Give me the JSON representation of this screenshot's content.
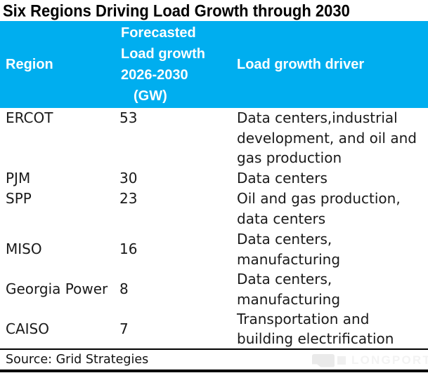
{
  "title": "Six Regions Driving Load Growth through 2030",
  "colors": {
    "header_bg": "#00AEEF",
    "header_text": "#FFFFFF",
    "body_text": "#1A1A1A",
    "rule_lines": "#000000",
    "watermark": "#F0F0F0"
  },
  "watermark": {
    "label": "LONGPORT",
    "logo": "longport-flag-logo"
  },
  "chart_data": {
    "type": "table",
    "title": "Six Regions Driving Load Growth through 2030",
    "columns": [
      "Region",
      "Forecasted Load growth 2026-2030 (GW)",
      "Load growth driver"
    ],
    "header": {
      "region": "Region",
      "forecast_lines": [
        "Forecasted",
        "Load growth",
        "2026-2030",
        "(GW)"
      ],
      "driver": "Load growth driver"
    },
    "rows": [
      {
        "region": "ERCOT",
        "load_growth_gw": "53",
        "driver": "Data centers,industrial development, and oil and gas production",
        "driver_lines": [
          "Data centers,industrial",
          "development, and oil and",
          "gas production"
        ]
      },
      {
        "region": "PJM",
        "load_growth_gw": "30",
        "driver": "Data centers",
        "driver_lines": [
          "Data centers"
        ]
      },
      {
        "region": "SPP",
        "load_growth_gw": "23",
        "driver": "Oil and gas production, data centers",
        "driver_lines": [
          "Oil and gas production,",
          "data centers"
        ]
      },
      {
        "region": "MISO",
        "load_growth_gw": "16",
        "driver": "Data centers, manufacturing",
        "driver_lines": [
          "Data centers,",
          "manufacturing"
        ]
      },
      {
        "region": "Georgia Power",
        "load_growth_gw": "8",
        "driver": "Data centers, manufacturing",
        "driver_lines": [
          "Data centers,",
          "manufacturing"
        ]
      },
      {
        "region": "CAISO",
        "load_growth_gw": "7",
        "driver": "Transportation and building electrification",
        "driver_lines": [
          "Transportation and",
          "building electrification"
        ]
      }
    ],
    "source": "Source: Grid Strategies"
  }
}
